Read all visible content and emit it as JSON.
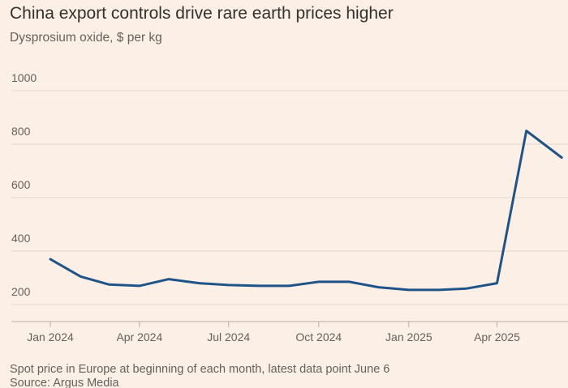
{
  "chart_data": {
    "type": "line",
    "title": "China export controls drive rare earth prices higher",
    "subtitle": "Dysprosium oxide, $ per kg",
    "xlabel": "",
    "ylabel": "",
    "x": [
      "2024-01-01",
      "2024-02-01",
      "2024-03-01",
      "2024-04-01",
      "2024-05-01",
      "2024-06-01",
      "2024-07-01",
      "2024-08-01",
      "2024-09-01",
      "2024-10-01",
      "2024-11-01",
      "2024-12-01",
      "2025-01-01",
      "2025-02-01",
      "2025-03-01",
      "2025-04-01",
      "2025-05-01",
      "2025-06-06"
    ],
    "series": [
      {
        "values": [
          370,
          305,
          275,
          270,
          295,
          280,
          273,
          270,
          270,
          285,
          285,
          265,
          255,
          255,
          260,
          280,
          850,
          750
        ],
        "color": "#1E5487"
      }
    ],
    "ylim": [
      150,
      1000
    ],
    "yticks": [
      200,
      400,
      600,
      800,
      1000
    ],
    "xticks": [
      {
        "date": "2024-01-01",
        "label": "Jan 2024"
      },
      {
        "date": "2024-04-01",
        "label": "Apr 2024"
      },
      {
        "date": "2024-07-01",
        "label": "Jul 2024"
      },
      {
        "date": "2024-10-01",
        "label": "Oct 2024"
      },
      {
        "date": "2025-01-01",
        "label": "Jan 2025"
      },
      {
        "date": "2025-04-01",
        "label": "Apr 2025"
      }
    ],
    "grid": true,
    "legend": "none",
    "note": "Spot price in Europe at beginning of each month, latest data point June 6",
    "source": "Source: Argus Media"
  },
  "colors": {
    "background": "#FCF0E6",
    "line": "#1E5487",
    "grid": "#E3D9CF",
    "text": "#33302E",
    "muted_text": "#66605C"
  }
}
